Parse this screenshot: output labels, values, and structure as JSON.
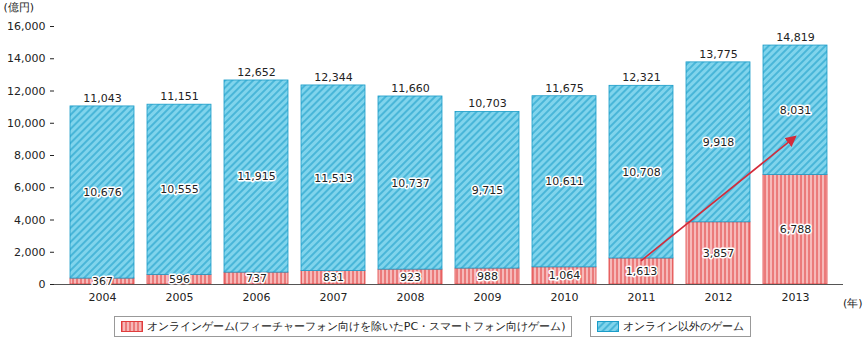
{
  "chart_data": {
    "type": "bar",
    "stacked": true,
    "data_labels": true,
    "grid": false,
    "legend": "bottom",
    "ylabel": "(億円)",
    "xlabel": "(年)",
    "categories": [
      "2004",
      "2005",
      "2006",
      "2007",
      "2008",
      "2009",
      "2010",
      "2011",
      "2012",
      "2013"
    ],
    "series": [
      {
        "name": "オンラインゲーム(フィーチャーフォン向けを除いたPC・スマートフォン向けゲーム)",
        "color": "#f6b9b9",
        "values": [
          367,
          596,
          737,
          831,
          923,
          988,
          1064,
          1613,
          3857,
          6788
        ],
        "value_labels": [
          "367",
          "596",
          "737",
          "831",
          "923",
          "988",
          "1,064",
          "1,613",
          "3,857",
          "6,788"
        ]
      },
      {
        "name": "オンライン以外のゲーム",
        "color": "#80d4ec",
        "values": [
          10676,
          10555,
          11915,
          11513,
          10737,
          9715,
          10611,
          10708,
          9918,
          8031
        ],
        "value_labels": [
          "10,676",
          "10,555",
          "11,915",
          "11,513",
          "10,737",
          "9,715",
          "10,611",
          "10,708",
          "9,918",
          "8,031"
        ]
      }
    ],
    "totals": [
      11043,
      11151,
      12652,
      12344,
      11660,
      10703,
      11675,
      12321,
      13775,
      14819
    ],
    "total_labels": [
      "11,043",
      "11,151",
      "12,652",
      "12,344",
      "11,660",
      "10,703",
      "11,675",
      "12,321",
      "13,775",
      "14,819"
    ],
    "ylim": [
      0,
      16000
    ],
    "yticks": [
      0,
      {
        "value": 2000,
        "label": "2,000"
      },
      {
        "value": 4000,
        "label": "4,000"
      },
      {
        "value": 6000,
        "label": "6,000"
      },
      {
        "value": 8000,
        "label": "8,000"
      },
      {
        "value": 10000,
        "label": "10,000"
      },
      {
        "value": 12000,
        "label": "12,000"
      },
      {
        "value": 14000,
        "label": "14,000"
      },
      {
        "value": 16000,
        "label": "16,000"
      }
    ]
  }
}
